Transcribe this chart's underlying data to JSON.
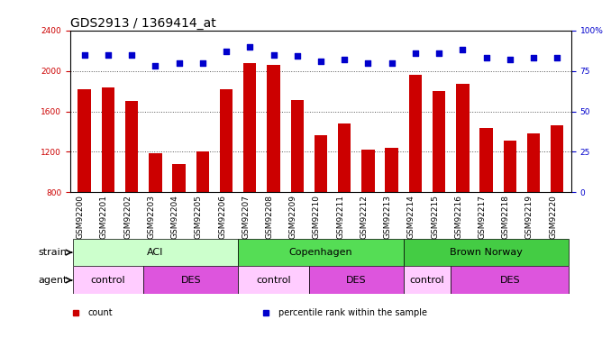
{
  "title": "GDS2913 / 1369414_at",
  "samples": [
    "GSM92200",
    "GSM92201",
    "GSM92202",
    "GSM92203",
    "GSM92204",
    "GSM92205",
    "GSM92206",
    "GSM92207",
    "GSM92208",
    "GSM92209",
    "GSM92210",
    "GSM92211",
    "GSM92212",
    "GSM92213",
    "GSM92214",
    "GSM92215",
    "GSM92216",
    "GSM92217",
    "GSM92218",
    "GSM92219",
    "GSM92220"
  ],
  "counts": [
    1820,
    1840,
    1700,
    1190,
    1080,
    1200,
    1820,
    2080,
    2060,
    1710,
    1360,
    1480,
    1220,
    1240,
    1960,
    1800,
    1870,
    1440,
    1310,
    1380,
    1460
  ],
  "percentiles": [
    85,
    85,
    85,
    78,
    80,
    80,
    87,
    90,
    85,
    84,
    81,
    82,
    80,
    80,
    86,
    86,
    88,
    83,
    82,
    83,
    83
  ],
  "ylim_left": [
    800,
    2400
  ],
  "ylim_right": [
    0,
    100
  ],
  "yticks_left": [
    800,
    1200,
    1600,
    2000,
    2400
  ],
  "yticks_right": [
    0,
    25,
    50,
    75,
    100
  ],
  "bar_color": "#cc0000",
  "dot_color": "#0000cc",
  "grid_color": "#555555",
  "plot_bg": "#ffffff",
  "xtick_bg": "#d8d8d8",
  "strain_groups": [
    {
      "label": "ACI",
      "start": 0,
      "end": 6,
      "color": "#ccffcc"
    },
    {
      "label": "Copenhagen",
      "start": 7,
      "end": 13,
      "color": "#55dd55"
    },
    {
      "label": "Brown Norway",
      "start": 14,
      "end": 20,
      "color": "#44cc44"
    }
  ],
  "agent_groups": [
    {
      "label": "control",
      "start": 0,
      "end": 2,
      "color": "#ffccff"
    },
    {
      "label": "DES",
      "start": 3,
      "end": 6,
      "color": "#dd55dd"
    },
    {
      "label": "control",
      "start": 7,
      "end": 9,
      "color": "#ffccff"
    },
    {
      "label": "DES",
      "start": 10,
      "end": 13,
      "color": "#dd55dd"
    },
    {
      "label": "control",
      "start": 14,
      "end": 15,
      "color": "#ffccff"
    },
    {
      "label": "DES",
      "start": 16,
      "end": 20,
      "color": "#dd55dd"
    }
  ],
  "legend_items": [
    {
      "label": "count",
      "color": "#cc0000",
      "marker": "s"
    },
    {
      "label": "percentile rank within the sample",
      "color": "#0000cc",
      "marker": "s"
    }
  ],
  "title_fontsize": 10,
  "tick_fontsize": 6.5,
  "label_fontsize": 8,
  "row_label_fontsize": 8
}
